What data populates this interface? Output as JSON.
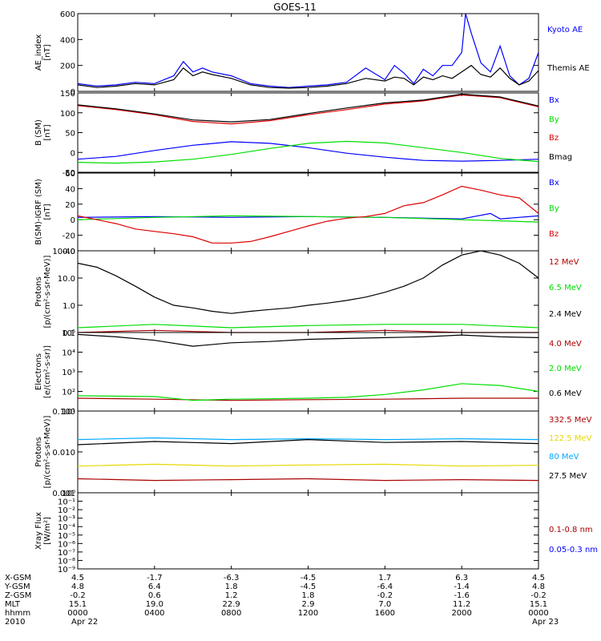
{
  "chart_data": {
    "type": "line",
    "title": "GOES-11",
    "x_axis": {
      "xlim": [
        0,
        24
      ],
      "ticks": [
        0,
        4,
        8,
        12,
        16,
        20,
        24
      ],
      "row_labels": [
        "X-GSM",
        "Y-GSM",
        "Z-GSM",
        "MLT",
        "hhmm",
        "2010"
      ],
      "rows": [
        [
          "4.5",
          "-1.7",
          "-6.3",
          "-4.5",
          "1.7",
          "6.3",
          "4.5"
        ],
        [
          "4.8",
          "6.4",
          "1.8",
          "-4.5",
          "-6.4",
          "-1.4",
          "4.8"
        ],
        [
          "-0.2",
          "0.6",
          "1.2",
          "1.8",
          "-0.2",
          "-1.6",
          "-0.2"
        ],
        [
          "15.1",
          "19.0",
          "22.9",
          "2.9",
          "7.0",
          "11.2",
          "15.1"
        ],
        [
          "0000",
          "0400",
          "0800",
          "1200",
          "1600",
          "2000",
          "0000"
        ],
        [
          "Apr 22",
          "",
          "",
          "",
          "",
          "",
          "Apr 23"
        ]
      ]
    },
    "panels": [
      {
        "ylabel": [
          "AE_index",
          "[nT]"
        ],
        "scale": "linear",
        "ylim": [
          0,
          600
        ],
        "yticks": [
          "0",
          "200",
          "400",
          "600"
        ],
        "tick_values": [
          0,
          200,
          400,
          600
        ],
        "series": [
          {
            "name": "Kyoto AE",
            "color": "#0000ff",
            "x": [
              0,
              1,
              2,
              3,
              4,
              5,
              5.5,
              6,
              6.5,
              7,
              8,
              9,
              10,
              11,
              12,
              13,
              14,
              15,
              16,
              16.5,
              17,
              17.5,
              18,
              18.5,
              19,
              19.5,
              20,
              20.2,
              20.5,
              21,
              21.5,
              22,
              22.5,
              23,
              23.5,
              24
            ],
            "y": [
              60,
              40,
              50,
              70,
              60,
              120,
              230,
              150,
              180,
              150,
              120,
              60,
              40,
              30,
              40,
              50,
              70,
              180,
              90,
              200,
              140,
              60,
              170,
              120,
              200,
              200,
              300,
              600,
              450,
              220,
              150,
              350,
              120,
              50,
              100,
              300
            ]
          },
          {
            "name": "Themis AE",
            "color": "#000000",
            "x": [
              0,
              1,
              2,
              3,
              4,
              5,
              5.5,
              6,
              6.5,
              7,
              8,
              9,
              10,
              11,
              12,
              13,
              14,
              15,
              16,
              16.5,
              17,
              17.5,
              18,
              18.5,
              19,
              19.5,
              20,
              20.5,
              21,
              21.5,
              22,
              22.5,
              23,
              23.5,
              24
            ],
            "y": [
              50,
              30,
              40,
              60,
              50,
              90,
              180,
              120,
              150,
              130,
              100,
              50,
              30,
              25,
              30,
              40,
              60,
              100,
              80,
              110,
              100,
              50,
              110,
              90,
              120,
              100,
              150,
              200,
              130,
              110,
              180,
              100,
              50,
              80,
              160
            ]
          }
        ]
      },
      {
        "ylabel": [
          "B (SM)",
          "[nT]"
        ],
        "scale": "linear",
        "ylim": [
          -50,
          150
        ],
        "yticks": [
          "-50",
          "0",
          "50",
          "100",
          "150"
        ],
        "tick_values": [
          -50,
          0,
          50,
          100,
          150
        ],
        "series": [
          {
            "name": "Bx",
            "color": "#0000ff",
            "x": [
              0,
              2,
              4,
              6,
              8,
              10,
              12,
              14,
              16,
              18,
              20,
              22,
              24
            ],
            "y": [
              -17,
              -10,
              5,
              18,
              27,
              23,
              12,
              -2,
              -12,
              -20,
              -22,
              -20,
              -17
            ]
          },
          {
            "name": "By",
            "color": "#00dd00",
            "x": [
              0,
              2,
              4,
              6,
              8,
              10,
              12,
              14,
              16,
              18,
              20,
              22,
              24
            ],
            "y": [
              -25,
              -27,
              -24,
              -17,
              -5,
              10,
              23,
              28,
              24,
              12,
              0,
              -15,
              -23
            ]
          },
          {
            "name": "Bz",
            "color": "#dd0000",
            "x": [
              0,
              2,
              4,
              6,
              8,
              10,
              12,
              14,
              16,
              18,
              20,
              22,
              24
            ],
            "y": [
              118,
              108,
              95,
              78,
              72,
              80,
              95,
              108,
              122,
              130,
              145,
              138,
              115
            ]
          },
          {
            "name": "Bmag",
            "color": "#000000",
            "x": [
              0,
              2,
              4,
              6,
              8,
              10,
              12,
              14,
              16,
              18,
              20,
              22,
              24
            ],
            "y": [
              120,
              110,
              97,
              82,
              77,
              83,
              98,
              112,
              125,
              132,
              147,
              140,
              117
            ]
          }
        ]
      },
      {
        "ylabel": [
          "B(SM)-IGRF (SM)",
          "[nT]"
        ],
        "scale": "linear",
        "ylim": [
          -40,
          60
        ],
        "yticks": [
          "-40",
          "-20",
          "0",
          "20",
          "40",
          "60"
        ],
        "tick_values": [
          -40,
          -20,
          0,
          20,
          40,
          60
        ],
        "series": [
          {
            "name": "Bx",
            "color": "#0000ff",
            "x": [
              0,
              4,
              8,
              12,
              16,
              20,
              21.5,
              22,
              24
            ],
            "y": [
              3,
              4,
              3,
              4,
              3,
              1,
              8,
              1,
              5
            ]
          },
          {
            "name": "By",
            "color": "#00dd00",
            "x": [
              0,
              4,
              8,
              12,
              16,
              20,
              24
            ],
            "y": [
              0,
              3,
              5,
              4,
              3,
              0,
              -3
            ]
          },
          {
            "name": "Bz",
            "color": "#dd0000",
            "x": [
              0,
              1,
              2,
              3,
              4,
              5,
              6,
              7,
              8,
              9,
              10,
              11,
              12,
              13,
              14,
              15,
              16,
              17,
              18,
              19,
              20,
              21,
              22,
              23,
              24
            ],
            "y": [
              5,
              0,
              -5,
              -12,
              -15,
              -18,
              -22,
              -30,
              -30,
              -28,
              -22,
              -15,
              -8,
              -2,
              2,
              4,
              8,
              18,
              22,
              32,
              43,
              38,
              32,
              28,
              8
            ]
          }
        ]
      },
      {
        "ylabel": [
          "Protons",
          "[p/(cm²-s-sr-MeV)]"
        ],
        "scale": "log",
        "ylim": [
          0.1,
          100
        ],
        "yticks": [
          "0.1",
          "1.0",
          "10.0",
          "100.0"
        ],
        "tick_values": [
          0.1,
          1,
          10,
          100
        ],
        "series": [
          {
            "name": "12 MeV",
            "color": "#aa0000",
            "x": [
              0,
              4,
              8,
              12,
              16,
              20,
              24
            ],
            "y": [
              0.1,
              0.12,
              0.1,
              0.1,
              0.12,
              0.1,
              0.1
            ]
          },
          {
            "name": "6.5 MeV",
            "color": "#00dd00",
            "x": [
              0,
              4,
              8,
              12,
              16,
              20,
              24
            ],
            "y": [
              0.15,
              0.2,
              0.15,
              0.18,
              0.2,
              0.2,
              0.15
            ]
          },
          {
            "name": "2.4 MeV",
            "color": "#000000",
            "x": [
              0,
              1,
              2,
              3,
              4,
              5,
              6,
              7,
              8,
              9,
              10,
              11,
              12,
              13,
              14,
              15,
              16,
              17,
              18,
              19,
              20,
              21,
              22,
              23,
              24
            ],
            "y": [
              35,
              25,
              12,
              5,
              2,
              1,
              0.8,
              0.6,
              0.5,
              0.6,
              0.7,
              0.8,
              1,
              1.2,
              1.5,
              2,
              3,
              5,
              10,
              30,
              70,
              100,
              70,
              35,
              10
            ]
          }
        ]
      },
      {
        "ylabel": [
          "Electrons",
          "[e/(cm²-s-sr)]"
        ],
        "scale": "log",
        "ylim": [
          10,
          100000
        ],
        "yticks": [
          "10¹",
          "10²",
          "10³",
          "10⁴",
          "10⁵"
        ],
        "tick_values": [
          10,
          100,
          1000,
          10000,
          100000
        ],
        "series": [
          {
            "name": "4.0 MeV",
            "color": "#aa0000",
            "x": [
              0,
              4,
              8,
              12,
              16,
              20,
              24
            ],
            "y": [
              45,
              40,
              35,
              38,
              40,
              45,
              45
            ]
          },
          {
            "name": "2.0 MeV",
            "color": "#00dd00",
            "x": [
              0,
              4,
              6,
              8,
              10,
              12,
              14,
              16,
              18,
              20,
              22,
              24
            ],
            "y": [
              60,
              55,
              35,
              40,
              42,
              45,
              50,
              70,
              120,
              250,
              200,
              100
            ]
          },
          {
            "name": "0.6 MeV",
            "color": "#000000",
            "x": [
              0,
              2,
              4,
              6,
              8,
              10,
              12,
              14,
              16,
              18,
              20,
              22,
              24
            ],
            "y": [
              80000,
              60000,
              40000,
              20000,
              30000,
              35000,
              45000,
              50000,
              55000,
              60000,
              75000,
              60000,
              55000
            ]
          }
        ]
      },
      {
        "ylabel": [
          "Protons",
          "[p/(cm²-s-sr-MeV)]"
        ],
        "scale": "log",
        "ylim": [
          0.001,
          0.1
        ],
        "yticks": [
          "0.001",
          "0.010",
          "0.100"
        ],
        "tick_values": [
          0.001,
          0.01,
          0.1
        ],
        "series": [
          {
            "name": "332.5 MeV",
            "color": "#aa0000",
            "x": [
              0,
              4,
              8,
              12,
              16,
              20,
              24
            ],
            "y": [
              0.0022,
              0.002,
              0.0021,
              0.0022,
              0.002,
              0.0021,
              0.002
            ]
          },
          {
            "name": "122.5 MeV",
            "color": "#e6d800",
            "x": [
              0,
              4,
              8,
              12,
              16,
              20,
              24
            ],
            "y": [
              0.0045,
              0.005,
              0.0045,
              0.0048,
              0.005,
              0.0045,
              0.0047
            ]
          },
          {
            "name": "80 MeV",
            "color": "#00aaff",
            "x": [
              0,
              4,
              8,
              12,
              16,
              20,
              24
            ],
            "y": [
              0.02,
              0.022,
              0.02,
              0.021,
              0.02,
              0.021,
              0.02
            ]
          },
          {
            "name": "27.5 MeV",
            "color": "#000000",
            "x": [
              0,
              4,
              8,
              12,
              16,
              20,
              24
            ],
            "y": [
              0.015,
              0.018,
              0.016,
              0.02,
              0.017,
              0.018,
              0.016
            ]
          }
        ]
      },
      {
        "ylabel": [
          "Xray Flux",
          "[W/m²]"
        ],
        "scale": "log",
        "ylim": [
          1e-09,
          1
        ],
        "yticks": [
          "10⁻⁹",
          "10⁻⁸",
          "10⁻⁷",
          "10⁻⁶",
          "10⁻⁵",
          "10⁻⁴",
          "10⁻³",
          "10⁻²",
          "10⁻¹",
          "10⁰"
        ],
        "tick_values": [
          1e-09,
          1e-08,
          1e-07,
          1e-06,
          1e-05,
          0.0001,
          0.001,
          0.01,
          0.1,
          1
        ],
        "series": [
          {
            "name": "0.1-0.8 nm",
            "color": "#aa0000",
            "x": [],
            "y": []
          },
          {
            "name": "0.05-0.3 nm",
            "color": "#0000ff",
            "x": [],
            "y": []
          }
        ]
      }
    ]
  }
}
